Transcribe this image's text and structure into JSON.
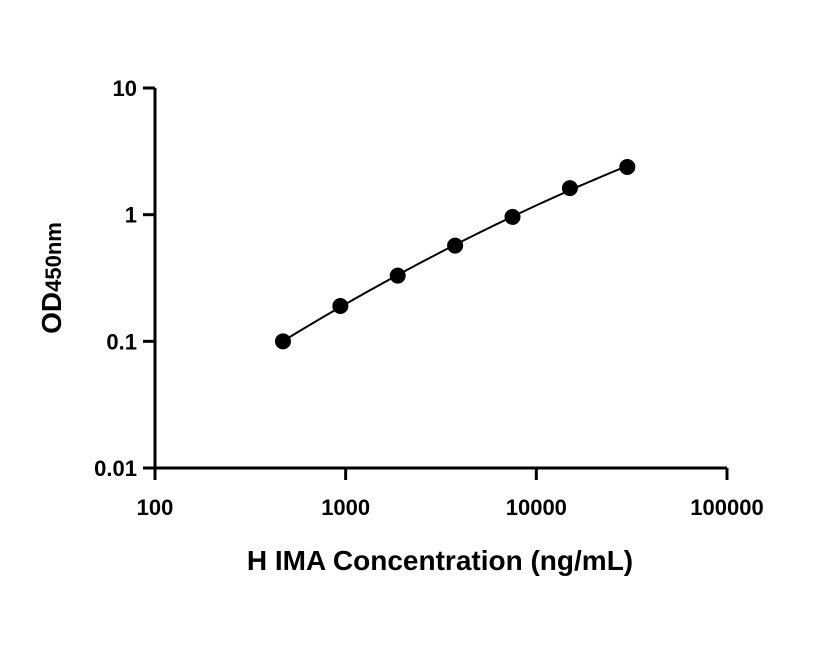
{
  "chart_data": {
    "type": "scatter",
    "xlabel": "H IMA Concentration (ng/mL)",
    "ylabel": {
      "main": "OD",
      "sub": "450nm"
    },
    "xscale": "log",
    "yscale": "log",
    "xlim": [
      100,
      100000
    ],
    "ylim": [
      0.01,
      10
    ],
    "xticks": [
      "100",
      "1000",
      "10000",
      "100000"
    ],
    "yticks": [
      "10",
      "1",
      "0.1",
      "0.01"
    ],
    "grid": false,
    "series": [
      {
        "x": [
          469,
          938,
          1875,
          3750,
          7500,
          15000,
          30000
        ],
        "y": [
          0.1,
          0.19,
          0.33,
          0.57,
          0.96,
          1.62,
          2.38
        ],
        "marker": "circle",
        "color": "#000000",
        "fit_line": true
      }
    ]
  }
}
